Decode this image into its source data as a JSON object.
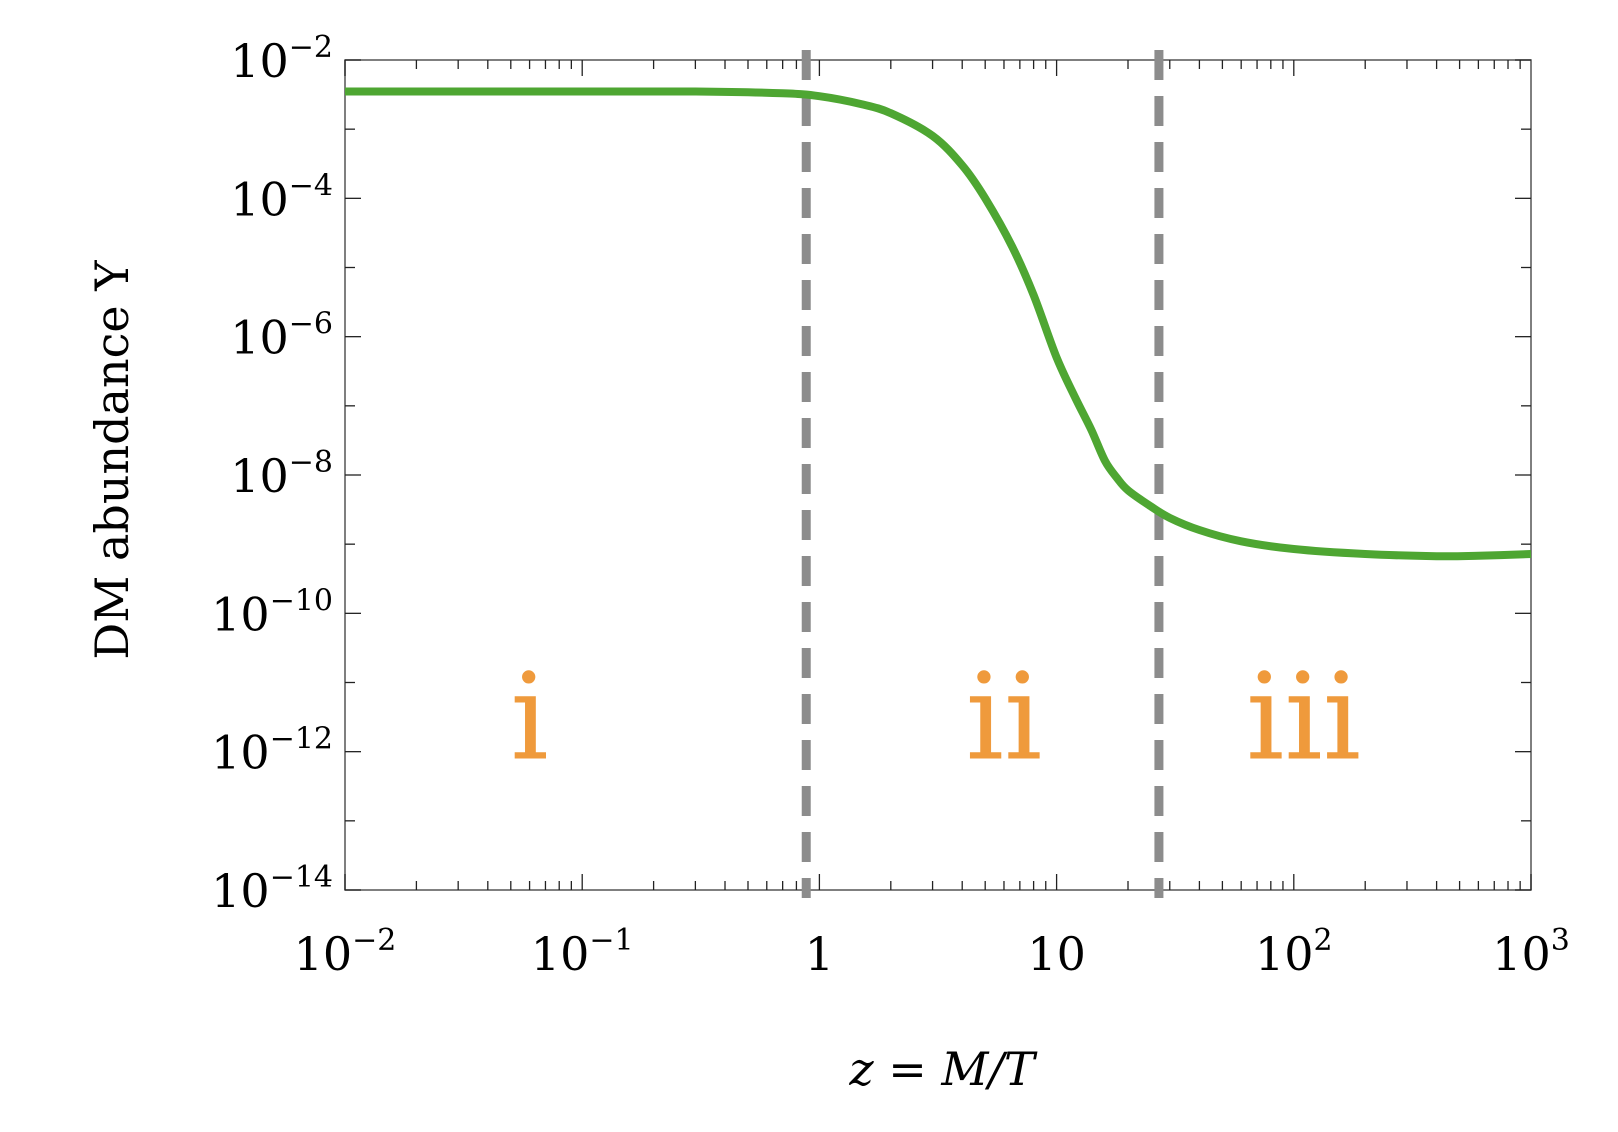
{
  "chart_data": {
    "type": "line",
    "title": "",
    "xlabel": "z = M/T",
    "ylabel": "DM abundance Y",
    "x_scale": "log",
    "y_scale": "log",
    "xlim": [
      0.01,
      1000
    ],
    "ylim": [
      1e-14,
      0.01
    ],
    "grid": false,
    "x_ticks": [
      {
        "value": 0.01,
        "base": "10",
        "exp": "−2"
      },
      {
        "value": 0.1,
        "base": "10",
        "exp": "−1"
      },
      {
        "value": 1,
        "base": "1",
        "exp": ""
      },
      {
        "value": 10,
        "base": "10",
        "exp": ""
      },
      {
        "value": 100,
        "base": "10",
        "exp": "2"
      },
      {
        "value": 1000,
        "base": "10",
        "exp": "3"
      }
    ],
    "y_ticks": [
      {
        "value": 0.01,
        "base": "10",
        "exp": "−2"
      },
      {
        "value": 0.0001,
        "base": "10",
        "exp": "−4"
      },
      {
        "value": 1e-06,
        "base": "10",
        "exp": "−6"
      },
      {
        "value": 1e-08,
        "base": "10",
        "exp": "−8"
      },
      {
        "value": 1e-10,
        "base": "10",
        "exp": "−10"
      },
      {
        "value": 1e-12,
        "base": "10",
        "exp": "−12"
      },
      {
        "value": 1e-14,
        "base": "10",
        "exp": "−14"
      }
    ],
    "series": [
      {
        "color": "#4ea632",
        "x": [
          0.01,
          0.03,
          0.1,
          0.3,
          0.7,
          1.0,
          1.5,
          2.0,
          3.0,
          4.0,
          5.0,
          6.5,
          8.0,
          10,
          12,
          14,
          16,
          18,
          20,
          25,
          30,
          40,
          60,
          100,
          200,
          400,
          600,
          1000
        ],
        "y": [
          0.0035,
          0.0035,
          0.0035,
          0.0035,
          0.0033,
          0.003,
          0.0023,
          0.0017,
          0.0008,
          0.0003,
          0.0001,
          2e-05,
          4e-06,
          5e-07,
          1.3e-07,
          4.5e-08,
          1.6e-08,
          9e-09,
          6e-09,
          3.5e-09,
          2.4e-09,
          1.6e-09,
          1.1e-09,
          8.5e-10,
          7.2e-10,
          6.7e-10,
          6.8e-10,
          7.2e-10
        ]
      }
    ],
    "vlines": [
      {
        "x": 0.88,
        "color": "#8c8c8c",
        "style": "dashed"
      },
      {
        "x": 27,
        "color": "#8c8c8c",
        "style": "dashed"
      }
    ],
    "annotations": [
      {
        "text": "i",
        "x": 0.06,
        "y": 3e-12,
        "color": "#ef9a3c"
      },
      {
        "text": "ii",
        "x": 6.0,
        "y": 3e-12,
        "color": "#ef9a3c"
      },
      {
        "text": "iii",
        "x": 110,
        "y": 3e-12,
        "color": "#ef9a3c"
      }
    ]
  }
}
